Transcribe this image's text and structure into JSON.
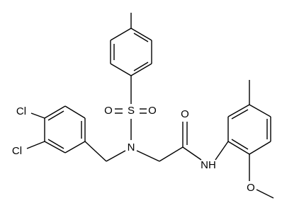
{
  "atoms": [
    {
      "label": "Cl"
    },
    {
      "label": "Cl"
    },
    {
      "label": "S"
    },
    {
      "label": "O"
    },
    {
      "label": "O"
    },
    {
      "label": "N"
    },
    {
      "label": "O"
    },
    {
      "label": "NH"
    },
    {
      "label": "O"
    }
  ]
}
